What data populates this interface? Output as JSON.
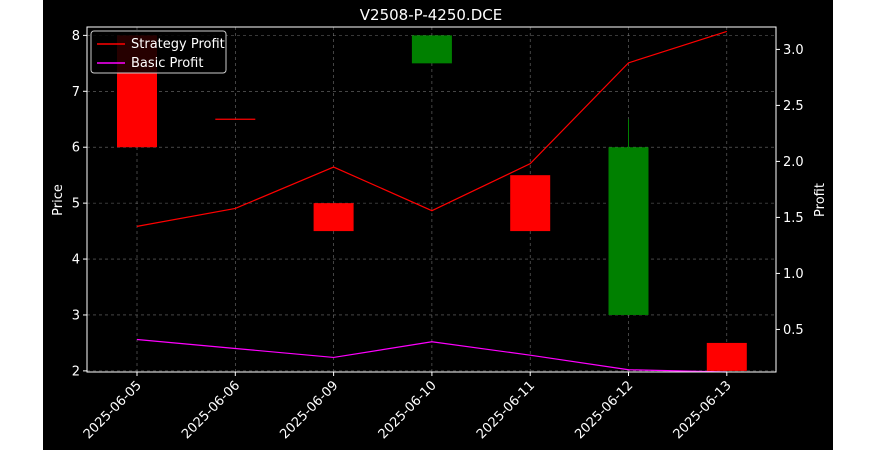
{
  "chart_data": {
    "type": "candlestick",
    "title": "V2508-P-4250.DCE",
    "ylabel_left": "Price",
    "ylabel_right": "Profit",
    "xlabel": "",
    "categories": [
      "2025-06-05",
      "2025-06-06",
      "2025-06-09",
      "2025-06-10",
      "2025-06-11",
      "2025-06-12",
      "2025-06-13"
    ],
    "ylim_left": [
      1.98,
      8.15
    ],
    "ylim_right": [
      0.12,
      3.2
    ],
    "yticks_left": [
      "2",
      "3",
      "4",
      "5",
      "6",
      "7",
      "8"
    ],
    "yticks_right": [
      "0.5",
      "1.0",
      "1.5",
      "2.0",
      "2.5",
      "3.0"
    ],
    "grid": true,
    "legend_position": "top-left",
    "candles": [
      {
        "date": "2025-06-05",
        "open": 8.0,
        "high": 8.0,
        "low": 6.0,
        "close": 6.0
      },
      {
        "date": "2025-06-06",
        "open": 6.5,
        "high": 6.5,
        "low": 6.5,
        "close": 6.5
      },
      {
        "date": "2025-06-09",
        "open": 5.0,
        "high": 5.0,
        "low": 4.5,
        "close": 4.5
      },
      {
        "date": "2025-06-10",
        "open": 7.5,
        "high": 8.0,
        "low": 7.5,
        "close": 8.0
      },
      {
        "date": "2025-06-11",
        "open": 5.5,
        "high": 5.5,
        "low": 4.5,
        "close": 4.5
      },
      {
        "date": "2025-06-12",
        "open": 3.0,
        "high": 6.5,
        "low": 3.0,
        "close": 6.0
      },
      {
        "date": "2025-06-13",
        "open": 2.5,
        "high": 2.5,
        "low": 2.0,
        "close": 2.0
      }
    ],
    "series": [
      {
        "name": "Strategy Profit",
        "color": "#ff0000",
        "values": [
          1.42,
          1.58,
          1.95,
          1.56,
          1.98,
          2.88,
          3.16
        ]
      },
      {
        "name": "Basic Profit",
        "color": "#ff00ff",
        "values": [
          0.41,
          0.33,
          0.25,
          0.39,
          0.27,
          0.14,
          0.12
        ]
      }
    ],
    "colors": {
      "up": "#008000",
      "down": "#ff0000",
      "flat": "#ff0000",
      "background": "#000000",
      "axes": "#ffffff",
      "grid": "#bbbbbb"
    }
  }
}
